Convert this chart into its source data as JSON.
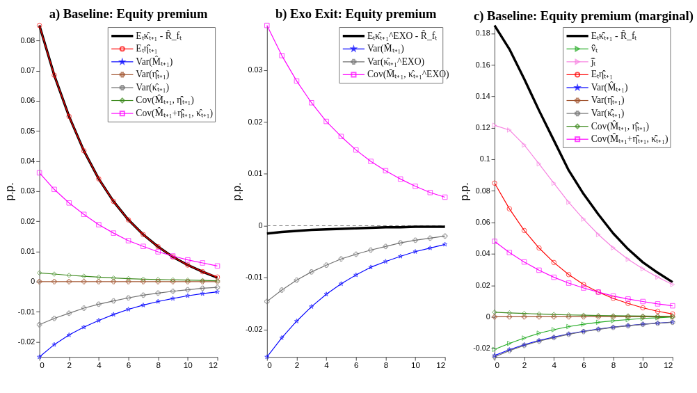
{
  "chart_data": [
    {
      "type": "line",
      "title": "a) Baseline: Equity premium",
      "ylabel": "p.p.",
      "x": [
        0,
        1,
        2,
        3,
        4,
        5,
        6,
        7,
        8,
        9,
        10,
        11,
        12
      ],
      "xlim": [
        0,
        12
      ],
      "xticks": [
        0,
        2,
        4,
        6,
        8,
        10,
        12
      ],
      "ylim": [
        -0.025,
        0.085
      ],
      "yticks": [
        -0.02,
        -0.01,
        0,
        0.01,
        0.02,
        0.03,
        0.04,
        0.05,
        0.06,
        0.07,
        0.08
      ],
      "grid": false,
      "legend": "top right",
      "series": [
        {
          "name": "Eₜκ̂ₜ₊₁ - R̂_fₜ",
          "color": "#000000",
          "marker": "none",
          "values": [
            0.085,
            0.0685,
            0.0548,
            0.0434,
            0.0341,
            0.0266,
            0.0205,
            0.0156,
            0.0116,
            0.0082,
            0.0055,
            0.0033,
            0.0013
          ]
        },
        {
          "name": "Eₜη̂̂ₜ₊₁",
          "color": "#ff0000",
          "marker": "circle",
          "values": [
            0.085,
            0.0685,
            0.0548,
            0.0434,
            0.0341,
            0.0266,
            0.0205,
            0.0156,
            0.0116,
            0.0082,
            0.0055,
            0.0033,
            0.0015
          ]
        },
        {
          "name": "Var(M̂ₜ₊₁)",
          "color": "#0000ff",
          "marker": "star",
          "values": [
            -0.025,
            -0.0209,
            -0.0177,
            -0.0151,
            -0.0129,
            -0.0109,
            -0.0092,
            -0.0078,
            -0.0066,
            -0.0056,
            -0.0047,
            -0.004,
            -0.0034
          ]
        },
        {
          "name": "Var(η̂̂ₜ₊₁)",
          "color": "#a0522d",
          "marker": "cross",
          "values": [
            0,
            0,
            0,
            0,
            0,
            0,
            0,
            0,
            0,
            0,
            0,
            0,
            0
          ]
        },
        {
          "name": "Var(κ̂ₜ₊₁)",
          "color": "#707070",
          "marker": "cross",
          "values": [
            -0.0143,
            -0.0122,
            -0.0105,
            -0.0088,
            -0.0075,
            -0.0064,
            -0.0054,
            -0.0045,
            -0.0038,
            -0.0032,
            -0.0027,
            -0.0022,
            -0.0019
          ]
        },
        {
          "name": "Cov(M̂ₜ₊₁, η̂̂ₜ₊₁)",
          "color": "#3d8a1e",
          "marker": "diamond",
          "values": [
            0.0029,
            0.0025,
            0.0021,
            0.0018,
            0.0015,
            0.0012,
            0.001,
            0.0008,
            0.0007,
            0.0006,
            0.0005,
            0.0004,
            0.0003
          ]
        },
        {
          "name": "Cov(M̂ₜ₊₁+η̂̂ₜ₊₁, κ̂ₜ₊₁)",
          "color": "#ff00ff",
          "marker": "square",
          "values": [
            0.0361,
            0.0306,
            0.0261,
            0.0223,
            0.0189,
            0.0161,
            0.0136,
            0.0117,
            0.0099,
            0.0085,
            0.0072,
            0.0062,
            0.0052
          ]
        }
      ]
    },
    {
      "type": "line",
      "title": "b) Exo Exit: Equity premium",
      "ylabel": "p.p.",
      "x": [
        0,
        1,
        2,
        3,
        4,
        5,
        6,
        7,
        8,
        9,
        10,
        11,
        12
      ],
      "xlim": [
        0,
        12
      ],
      "xticks": [
        0,
        2,
        4,
        6,
        8,
        10,
        12
      ],
      "ylim": [
        -0.0253,
        0.0386
      ],
      "yticks": [
        -0.02,
        -0.01,
        0,
        0.01,
        0.02,
        0.03
      ],
      "grid": false,
      "legend": "top right",
      "ref_lines": [
        {
          "axis": "y",
          "value": 0,
          "color": "#808080",
          "line_style": "dashed"
        }
      ],
      "series": [
        {
          "name": "Eₜκ̂ₜ₊₁^EXO - R̂_fₜ",
          "color": "#000000",
          "marker": "none",
          "values": [
            -0.0015,
            -0.0012,
            -0.001,
            -0.0008,
            -0.0007,
            -0.0006,
            -0.0005,
            -0.0004,
            -0.0003,
            -0.0003,
            -0.0002,
            -0.0002,
            -0.0002
          ]
        },
        {
          "name": "Var(M̂ₜ₊₁)",
          "color": "#0000ff",
          "marker": "star",
          "values": [
            -0.0253,
            -0.0216,
            -0.0184,
            -0.0156,
            -0.0132,
            -0.0112,
            -0.0095,
            -0.008,
            -0.0069,
            -0.0059,
            -0.005,
            -0.0043,
            -0.0036
          ]
        },
        {
          "name": "Var(κ̂ₜ₊₁^EXO)",
          "color": "#707070",
          "marker": "cross",
          "values": [
            -0.0146,
            -0.0124,
            -0.0105,
            -0.0089,
            -0.0076,
            -0.0064,
            -0.0055,
            -0.0047,
            -0.004,
            -0.0033,
            -0.0028,
            -0.0024,
            -0.002
          ]
        },
        {
          "name": "Cov(M̂ₜ₊₁, κ̂ₜ₊₁^EXO)",
          "color": "#ff00ff",
          "marker": "square",
          "values": [
            0.0386,
            0.0328,
            0.0279,
            0.0237,
            0.0201,
            0.0172,
            0.0146,
            0.0124,
            0.0106,
            0.009,
            0.0076,
            0.0064,
            0.0055
          ]
        }
      ]
    },
    {
      "type": "line",
      "title": "c) Baseline: Equity premium (marginal)",
      "ylabel": "p.p.",
      "x": [
        0,
        1,
        2,
        3,
        4,
        5,
        6,
        7,
        8,
        9,
        10,
        11,
        12
      ],
      "xlim": [
        0,
        12
      ],
      "xticks": [
        0,
        2,
        4,
        6,
        8,
        10,
        12
      ],
      "ylim": [
        -0.0255,
        0.185
      ],
      "yticks": [
        -0.02,
        0,
        0.02,
        0.04,
        0.06,
        0.08,
        0.1,
        0.12,
        0.14,
        0.16,
        0.18
      ],
      "grid": false,
      "legend": "top right",
      "series": [
        {
          "name": "Eₜκ̂̂ₜ₊₁ - R̂_fₜ",
          "color": "#000000",
          "marker": "none",
          "values": [
            0.185,
            0.17,
            0.151,
            0.131,
            0.112,
            0.093,
            0.078,
            0.065,
            0.053,
            0.043,
            0.0346,
            0.028,
            0.022
          ]
        },
        {
          "name": "v̂̂ₜ",
          "color": "#22aa22",
          "marker": "triangle",
          "values": [
            -0.0207,
            -0.0169,
            -0.0135,
            -0.0104,
            -0.0082,
            -0.0062,
            -0.0047,
            -0.0035,
            -0.0025,
            -0.0018,
            -0.001,
            -0.0006,
            -0.0001
          ]
        },
        {
          "name": "ĵ̂ₜ",
          "color": "#f77fe0",
          "marker": "triangle",
          "values": [
            0.1216,
            0.1186,
            0.1091,
            0.0971,
            0.0848,
            0.0727,
            0.062,
            0.0522,
            0.0438,
            0.0365,
            0.0305,
            0.0252,
            0.0205
          ]
        },
        {
          "name": "Eₜη̂̂ₜ₊₁",
          "color": "#ff0000",
          "marker": "circle",
          "values": [
            0.0849,
            0.0686,
            0.0548,
            0.0437,
            0.0345,
            0.0268,
            0.0205,
            0.0157,
            0.0117,
            0.0085,
            0.0057,
            0.0035,
            0.0018
          ]
        },
        {
          "name": "Var(M̂ₜ₊₁)",
          "color": "#0000ff",
          "marker": "star",
          "values": [
            -0.0246,
            -0.0209,
            -0.0177,
            -0.0151,
            -0.0129,
            -0.0109,
            -0.0092,
            -0.0078,
            -0.0066,
            -0.0056,
            -0.0047,
            -0.004,
            -0.0034
          ]
        },
        {
          "name": "Var(η̂̂ₜ₊₁)",
          "color": "#a0522d",
          "marker": "cross",
          "values": [
            0,
            0,
            0,
            0,
            0,
            0,
            0,
            0,
            0,
            0,
            0,
            0,
            0
          ]
        },
        {
          "name": "Var(κ̂̂ₜ₊₁)",
          "color": "#707070",
          "marker": "cross",
          "values": [
            -0.0255,
            -0.0215,
            -0.0182,
            -0.0155,
            -0.0132,
            -0.0111,
            -0.0094,
            -0.008,
            -0.0067,
            -0.0057,
            -0.0048,
            -0.0041,
            -0.0035
          ]
        },
        {
          "name": "Cov(M̂ₜ₊₁, η̂̂ₜ₊₁)",
          "color": "#3d8a1e",
          "marker": "diamond",
          "values": [
            0.0029,
            0.0025,
            0.0021,
            0.0018,
            0.0015,
            0.0012,
            0.001,
            0.0008,
            0.0007,
            0.0006,
            0.0005,
            0.0004,
            0.0003
          ]
        },
        {
          "name": "Cov(M̂ₜ₊₁+η̂̂ₜ₊₁, κ̂̂ₜ₊₁)",
          "color": "#ff00ff",
          "marker": "square",
          "values": [
            0.0479,
            0.0408,
            0.0348,
            0.0296,
            0.0251,
            0.0214,
            0.0183,
            0.0157,
            0.0132,
            0.0113,
            0.0097,
            0.0082,
            0.007
          ]
        }
      ]
    }
  ]
}
